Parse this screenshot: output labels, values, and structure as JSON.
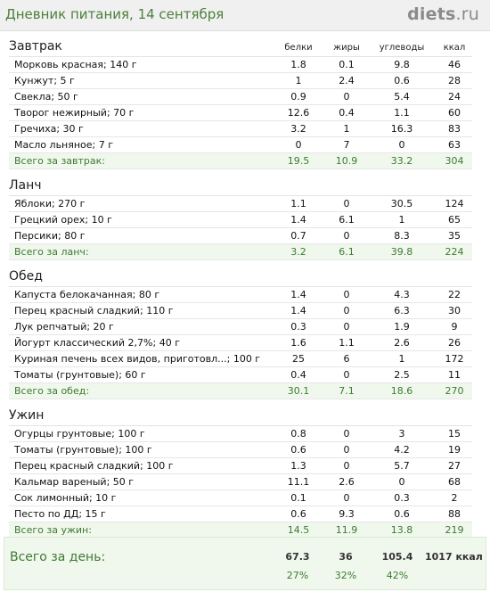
{
  "header": {
    "title": "Дневник питания, 14 сентября",
    "logo_main": "diets",
    "logo_tld": ".ru"
  },
  "columns": {
    "protein": "белки",
    "fat": "жиры",
    "carbs": "углеводы",
    "kcal": "ккал"
  },
  "meals": [
    {
      "name": "Завтрак",
      "items": [
        {
          "name": "Морковь красная; 140 г",
          "protein": "1.8",
          "fat": "0.1",
          "carbs": "9.8",
          "kcal": "46"
        },
        {
          "name": "Кунжут; 5 г",
          "protein": "1",
          "fat": "2.4",
          "carbs": "0.6",
          "kcal": "28"
        },
        {
          "name": "Свекла; 50 г",
          "protein": "0.9",
          "fat": "0",
          "carbs": "5.4",
          "kcal": "24"
        },
        {
          "name": "Творог нежирный; 70 г",
          "protein": "12.6",
          "fat": "0.4",
          "carbs": "1.1",
          "kcal": "60"
        },
        {
          "name": "Гречиха; 30 г",
          "protein": "3.2",
          "fat": "1",
          "carbs": "16.3",
          "kcal": "83"
        },
        {
          "name": "Масло льняное; 7 г",
          "protein": "0",
          "fat": "7",
          "carbs": "0",
          "kcal": "63"
        }
      ],
      "total": {
        "label": "Всего за завтрак:",
        "protein": "19.5",
        "fat": "10.9",
        "carbs": "33.2",
        "kcal": "304"
      }
    },
    {
      "name": "Ланч",
      "items": [
        {
          "name": "Яблоки; 270 г",
          "protein": "1.1",
          "fat": "0",
          "carbs": "30.5",
          "kcal": "124"
        },
        {
          "name": "Грецкий орех; 10 г",
          "protein": "1.4",
          "fat": "6.1",
          "carbs": "1",
          "kcal": "65"
        },
        {
          "name": "Персики; 80 г",
          "protein": "0.7",
          "fat": "0",
          "carbs": "8.3",
          "kcal": "35"
        }
      ],
      "total": {
        "label": "Всего за ланч:",
        "protein": "3.2",
        "fat": "6.1",
        "carbs": "39.8",
        "kcal": "224"
      }
    },
    {
      "name": "Обед",
      "items": [
        {
          "name": "Капуста белокачанная; 80 г",
          "protein": "1.4",
          "fat": "0",
          "carbs": "4.3",
          "kcal": "22"
        },
        {
          "name": "Перец красный сладкий; 110 г",
          "protein": "1.4",
          "fat": "0",
          "carbs": "6.3",
          "kcal": "30"
        },
        {
          "name": "Лук репчатый; 20 г",
          "protein": "0.3",
          "fat": "0",
          "carbs": "1.9",
          "kcal": "9"
        },
        {
          "name": "Йогурт классический 2,7%; 40 г",
          "protein": "1.6",
          "fat": "1.1",
          "carbs": "2.6",
          "kcal": "26"
        },
        {
          "name": "Куриная печень всех видов, приготовл...; 100 г",
          "protein": "25",
          "fat": "6",
          "carbs": "1",
          "kcal": "172"
        },
        {
          "name": "Томаты (грунтовые); 60 г",
          "protein": "0.4",
          "fat": "0",
          "carbs": "2.5",
          "kcal": "11"
        }
      ],
      "total": {
        "label": "Всего за обед:",
        "protein": "30.1",
        "fat": "7.1",
        "carbs": "18.6",
        "kcal": "270"
      }
    },
    {
      "name": "Ужин",
      "items": [
        {
          "name": "Огурцы грунтовые; 100 г",
          "protein": "0.8",
          "fat": "0",
          "carbs": "3",
          "kcal": "15"
        },
        {
          "name": "Томаты (грунтовые); 100 г",
          "protein": "0.6",
          "fat": "0",
          "carbs": "4.2",
          "kcal": "19"
        },
        {
          "name": "Перец красный сладкий; 100 г",
          "protein": "1.3",
          "fat": "0",
          "carbs": "5.7",
          "kcal": "27"
        },
        {
          "name": "Кальмар вареный; 50 г",
          "protein": "11.1",
          "fat": "2.6",
          "carbs": "0",
          "kcal": "68"
        },
        {
          "name": "Сок лимонный; 10 г",
          "protein": "0.1",
          "fat": "0",
          "carbs": "0.3",
          "kcal": "2"
        },
        {
          "name": "Песто по ДД; 15 г",
          "protein": "0.6",
          "fat": "9.3",
          "carbs": "0.6",
          "kcal": "88"
        }
      ],
      "total": {
        "label": "Всего за ужин:",
        "protein": "14.5",
        "fat": "11.9",
        "carbs": "13.8",
        "kcal": "219"
      }
    }
  ],
  "day_total": {
    "label": "Всего за день:",
    "protein": "67.3",
    "fat": "36",
    "carbs": "105.4",
    "kcal": "1017 ккал",
    "protein_pct": "27%",
    "fat_pct": "32%",
    "carbs_pct": "42%"
  },
  "colors": {
    "accent_green": "#3d7a2f",
    "title_green": "#4c7f3b",
    "total_bg": "#f0f8ee"
  }
}
